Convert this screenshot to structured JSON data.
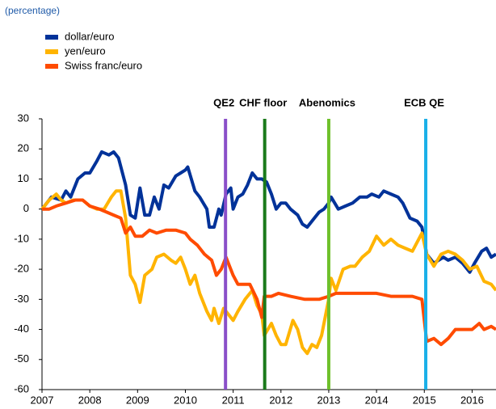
{
  "chart_data": {
    "type": "line",
    "subtitle": "(percentage)",
    "xlim": [
      2007,
      2016.5
    ],
    "xticks": [
      2007,
      2008,
      2009,
      2010,
      2011,
      2012,
      2013,
      2014,
      2015,
      2016
    ],
    "ylim": [
      -60,
      30
    ],
    "yticks": [
      -60,
      -50,
      -40,
      -30,
      -20,
      -10,
      0,
      10,
      20,
      30
    ],
    "events": [
      {
        "label": "QE2",
        "x": 2010.84,
        "color": "#8a4fc9"
      },
      {
        "label": "CHF floor",
        "x": 2011.66,
        "color": "#1a7a1a"
      },
      {
        "label": "Abenomics",
        "x": 2013.0,
        "color": "#6ec02b"
      },
      {
        "label": "ECB QE",
        "x": 2015.03,
        "color": "#1ab0e8"
      }
    ],
    "series": [
      {
        "name": "dollar/euro",
        "color": "#003299",
        "x": [
          2007.0,
          2007.2,
          2007.4,
          2007.5,
          2007.6,
          2007.75,
          2007.9,
          2008.0,
          2008.15,
          2008.25,
          2008.4,
          2008.5,
          2008.6,
          2008.75,
          2008.85,
          2008.95,
          2009.05,
          2009.15,
          2009.25,
          2009.35,
          2009.45,
          2009.55,
          2009.65,
          2009.8,
          2009.9,
          2010.0,
          2010.05,
          2010.2,
          2010.3,
          2010.45,
          2010.5,
          2010.6,
          2010.7,
          2010.75,
          2010.85,
          2010.95,
          2011.0,
          2011.1,
          2011.2,
          2011.3,
          2011.4,
          2011.5,
          2011.6,
          2011.7,
          2011.8,
          2011.9,
          2012.0,
          2012.1,
          2012.2,
          2012.35,
          2012.45,
          2012.55,
          2012.7,
          2012.8,
          2012.9,
          2013.0,
          2013.05,
          2013.2,
          2013.35,
          2013.5,
          2013.65,
          2013.8,
          2013.9,
          2014.05,
          2014.15,
          2014.3,
          2014.45,
          2014.55,
          2014.7,
          2014.85,
          2014.95,
          2015.05,
          2015.2,
          2015.4,
          2015.5,
          2015.65,
          2015.8,
          2015.95,
          2016.05,
          2016.2,
          2016.3,
          2016.4,
          2016.5
        ],
        "values": [
          0,
          4,
          3,
          6,
          4,
          10,
          12,
          12,
          16,
          19,
          18,
          19,
          17,
          8,
          -2,
          -3,
          7,
          -2,
          -2,
          4,
          0,
          8,
          7,
          11,
          12,
          13,
          14,
          6,
          4,
          0,
          -6,
          -6,
          0,
          -2,
          5,
          7,
          0,
          4,
          5,
          8,
          12,
          10,
          10,
          9,
          5,
          0,
          2,
          2,
          0,
          -2,
          -5,
          -6,
          -3,
          -1,
          0,
          2,
          4,
          0,
          1,
          2,
          4,
          4,
          5,
          4,
          6,
          5,
          4,
          2,
          -3,
          -4,
          -6,
          -15,
          -18,
          -16,
          -17,
          -16,
          -18,
          -21,
          -18,
          -14,
          -13,
          -16,
          -15
        ]
      },
      {
        "name": "yen/euro",
        "color": "#ffb400",
        "x": [
          2007.0,
          2007.15,
          2007.3,
          2007.4,
          2007.5,
          2007.65,
          2007.85,
          2008.0,
          2008.15,
          2008.3,
          2008.45,
          2008.55,
          2008.65,
          2008.75,
          2008.85,
          2008.95,
          2009.05,
          2009.15,
          2009.3,
          2009.4,
          2009.55,
          2009.7,
          2009.8,
          2009.9,
          2010.0,
          2010.1,
          2010.2,
          2010.3,
          2010.45,
          2010.55,
          2010.6,
          2010.7,
          2010.8,
          2010.9,
          2011.0,
          2011.1,
          2011.25,
          2011.4,
          2011.5,
          2011.6,
          2011.65,
          2011.8,
          2011.9,
          2012.0,
          2012.1,
          2012.25,
          2012.35,
          2012.45,
          2012.55,
          2012.65,
          2012.75,
          2012.85,
          2013.0,
          2013.05,
          2013.15,
          2013.3,
          2013.45,
          2013.55,
          2013.7,
          2013.85,
          2014.0,
          2014.15,
          2014.3,
          2014.45,
          2014.6,
          2014.75,
          2014.95,
          2015.05,
          2015.2,
          2015.35,
          2015.5,
          2015.65,
          2015.8,
          2015.95,
          2016.1,
          2016.25,
          2016.4,
          2016.5
        ],
        "values": [
          0,
          3,
          5,
          3,
          2,
          3,
          3,
          1,
          0,
          0,
          4,
          6,
          6,
          -3,
          -22,
          -25,
          -31,
          -22,
          -20,
          -16,
          -15,
          -17,
          -18,
          -16,
          -20,
          -25,
          -22,
          -28,
          -34,
          -37,
          -33,
          -38,
          -33,
          -35,
          -37,
          -34,
          -30,
          -27,
          -32,
          -35,
          -42,
          -38,
          -42,
          -45,
          -45,
          -37,
          -40,
          -46,
          -48,
          -45,
          -46,
          -42,
          -30,
          -23,
          -27,
          -20,
          -19,
          -19,
          -16,
          -14,
          -9,
          -12,
          -10,
          -12,
          -13,
          -14,
          -8,
          -15,
          -19,
          -15,
          -14,
          -15,
          -17,
          -20,
          -19,
          -24,
          -25,
          -27
        ]
      },
      {
        "name": "Swiss franc/euro",
        "color": "#ff4b00",
        "x": [
          2007.0,
          2007.15,
          2007.3,
          2007.5,
          2007.7,
          2007.85,
          2008.0,
          2008.2,
          2008.35,
          2008.5,
          2008.65,
          2008.75,
          2008.85,
          2008.95,
          2009.1,
          2009.25,
          2009.4,
          2009.6,
          2009.8,
          2010.0,
          2010.1,
          2010.25,
          2010.4,
          2010.55,
          2010.65,
          2010.75,
          2010.85,
          2011.0,
          2011.1,
          2011.25,
          2011.35,
          2011.5,
          2011.6,
          2011.65,
          2011.8,
          2011.95,
          2012.2,
          2012.5,
          2012.8,
          2013.0,
          2013.15,
          2013.35,
          2013.6,
          2013.8,
          2014.0,
          2014.3,
          2014.5,
          2014.75,
          2014.95,
          2015.05,
          2015.2,
          2015.35,
          2015.5,
          2015.65,
          2015.85,
          2016.0,
          2016.15,
          2016.25,
          2016.4,
          2016.5
        ],
        "values": [
          0,
          0,
          1,
          2,
          3,
          3,
          1,
          0,
          -1,
          -2,
          -3,
          -8,
          -6,
          -9,
          -9,
          -7,
          -8,
          -7,
          -7,
          -8,
          -10,
          -12,
          -15,
          -17,
          -22,
          -20,
          -16,
          -22,
          -25,
          -25,
          -25,
          -30,
          -36,
          -29,
          -29,
          -28,
          -29,
          -30,
          -30,
          -29,
          -28,
          -28,
          -28,
          -28,
          -28,
          -29,
          -29,
          -29,
          -30,
          -44,
          -43,
          -45,
          -43,
          -40,
          -40,
          -40,
          -38,
          -40,
          -39,
          -40
        ]
      }
    ]
  }
}
